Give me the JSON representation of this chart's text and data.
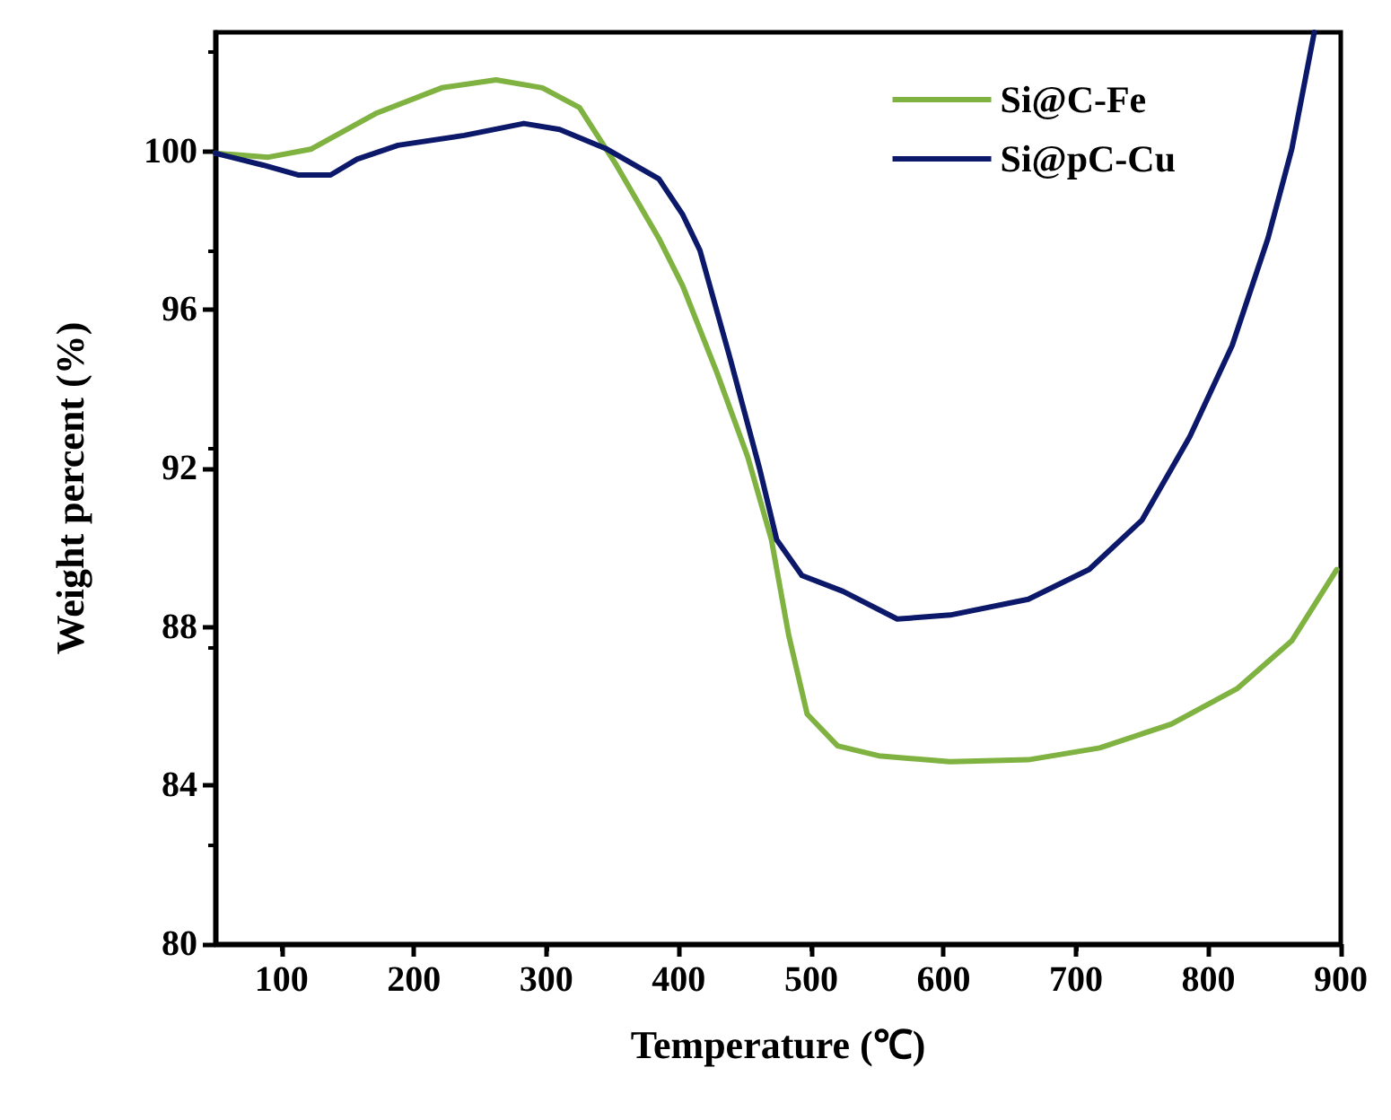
{
  "chart_data": {
    "type": "line",
    "xlabel": "Temperature (℃)",
    "ylabel": "Weight percent (%)",
    "xlim": [
      50,
      900
    ],
    "xticks": [
      100,
      200,
      300,
      400,
      500,
      600,
      700,
      800,
      900
    ],
    "ylim": [
      80,
      103
    ],
    "yticks": [
      80,
      84,
      88,
      92,
      96,
      100
    ],
    "legend": "top right",
    "grid": false,
    "marker": "none",
    "line_style": "solid",
    "series": [
      {
        "name": "Si@C-Fe",
        "color": "#7fb241",
        "x": [
          50,
          90,
          122,
          171,
          221,
          262,
          297,
          325,
          352,
          385,
          403,
          429,
          452,
          470,
          483,
          497,
          520,
          551,
          605,
          664,
          718,
          772,
          822,
          863,
          897
        ],
        "values": [
          99.95,
          99.85,
          100.05,
          100.95,
          101.6,
          101.8,
          101.6,
          101.1,
          99.7,
          97.8,
          96.6,
          94.4,
          92.3,
          90.2,
          87.8,
          85.8,
          85.0,
          84.75,
          84.6,
          84.65,
          84.95,
          85.55,
          86.45,
          87.65,
          89.45
        ]
      },
      {
        "name": "Si@pC-Cu",
        "color": "#0c1869",
        "x": [
          50,
          86,
          113,
          137,
          157,
          188,
          238,
          283,
          310,
          346,
          385,
          403,
          416,
          439,
          461,
          474,
          493,
          524,
          565,
          605,
          664,
          710,
          750,
          786,
          818,
          845,
          863,
          880
        ],
        "values": [
          99.95,
          99.65,
          99.4,
          99.4,
          99.8,
          100.15,
          100.4,
          100.7,
          100.55,
          100.05,
          99.3,
          98.4,
          97.5,
          94.75,
          92.0,
          90.2,
          89.3,
          88.9,
          88.2,
          88.3,
          88.7,
          89.45,
          90.7,
          92.8,
          95.1,
          97.8,
          100.05,
          103
        ]
      }
    ]
  }
}
